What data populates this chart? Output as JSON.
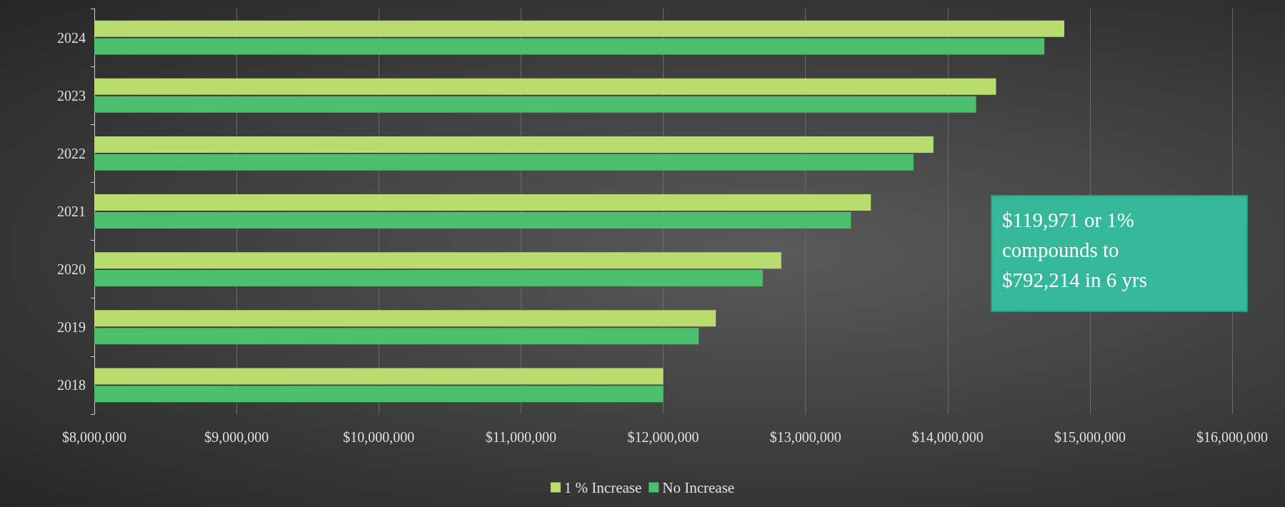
{
  "chart_data": {
    "type": "bar",
    "orientation": "horizontal",
    "categories": [
      "2024",
      "2023",
      "2022",
      "2021",
      "2020",
      "2019",
      "2018"
    ],
    "series": [
      {
        "name": "1 % Increase",
        "color": "#b9dc6e",
        "values": [
          14820000,
          14340000,
          13900000,
          13460000,
          12830000,
          12370000,
          12000000
        ]
      },
      {
        "name": "No Increase",
        "color": "#4cbf6c",
        "values": [
          14680000,
          14200000,
          13760000,
          13320000,
          12700000,
          12250000,
          12000000
        ]
      }
    ],
    "xlim": [
      8000000,
      16000000
    ],
    "xticks": [
      {
        "value": 8000000,
        "label": "$8,000,000"
      },
      {
        "value": 9000000,
        "label": "$9,000,000"
      },
      {
        "value": 10000000,
        "label": "$10,000,000"
      },
      {
        "value": 11000000,
        "label": "$11,000,000"
      },
      {
        "value": 12000000,
        "label": "$12,000,000"
      },
      {
        "value": 13000000,
        "label": "$13,000,000"
      },
      {
        "value": 14000000,
        "label": "$14,000,000"
      },
      {
        "value": 15000000,
        "label": "$15,000,000"
      },
      {
        "value": 16000000,
        "label": "$16,000,000"
      }
    ],
    "annotations": [
      "$119,971 or 1%\ncompounds to\n$792,214 in 6 yrs"
    ],
    "grid": "x",
    "legend": "bottom"
  }
}
